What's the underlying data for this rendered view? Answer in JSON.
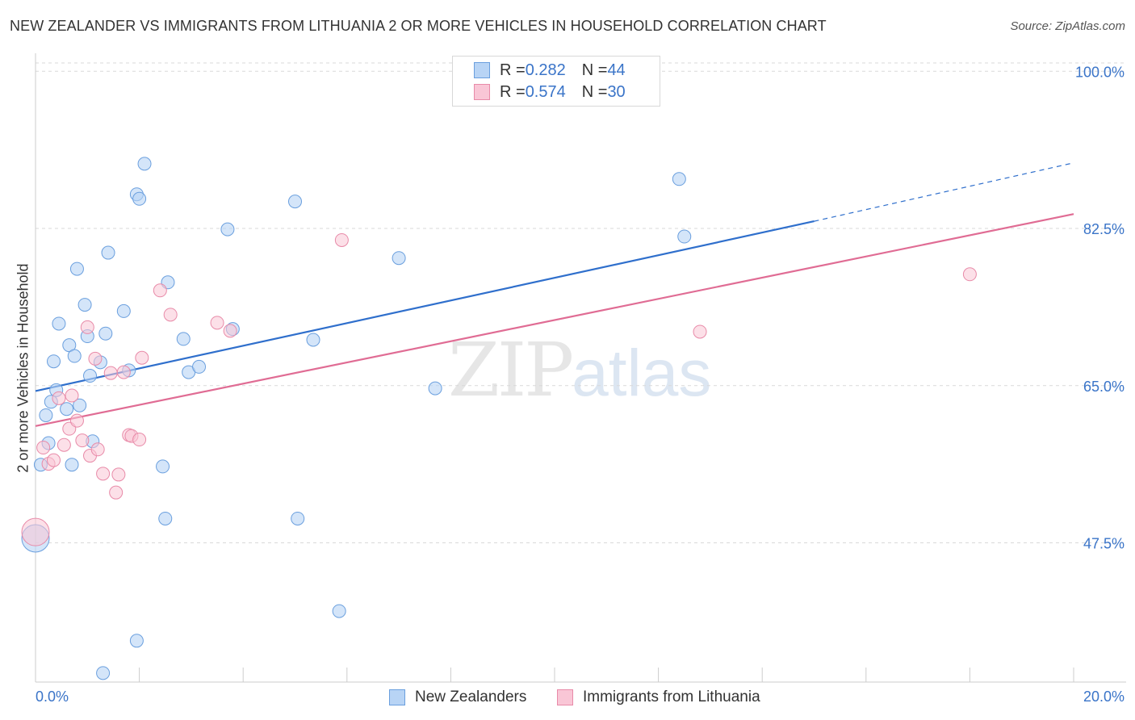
{
  "header": {
    "title": "NEW ZEALANDER VS IMMIGRANTS FROM LITHUANIA 2 OR MORE VEHICLES IN HOUSEHOLD CORRELATION CHART",
    "source": "Source: ZipAtlas.com"
  },
  "legend": {
    "nz": {
      "r_label": "R = ",
      "r_value": "0.282",
      "n_label": "N = ",
      "n_value": "44"
    },
    "lt": {
      "r_label": "R = ",
      "r_value": "0.574",
      "n_label": "N = ",
      "n_value": "30"
    }
  },
  "watermark": {
    "zip": "ZIP",
    "atlas": "atlas"
  },
  "colors": {
    "nz_fill": "#b8d4f5",
    "nz_stroke": "#6a9fde",
    "nz_line": "#2f6fcc",
    "lt_fill": "#f9c6d6",
    "lt_stroke": "#e88aa8",
    "lt_line": "#e06c94",
    "tick_label": "#3a74c8",
    "grid": "#d9d9d9"
  },
  "chart_data": {
    "type": "scatter",
    "title": "NEW ZEALANDER VS IMMIGRANTS FROM LITHUANIA 2 OR MORE VEHICLES IN HOUSEHOLD CORRELATION CHART",
    "xlabel": "",
    "ylabel": "2 or more Vehicles in Household",
    "xlim": [
      0,
      20
    ],
    "ylim": [
      32,
      102
    ],
    "x_unit": "%",
    "y_unit": "%",
    "x_tick_labels": [
      "0.0%",
      "20.0%"
    ],
    "y_ticks": [
      47.5,
      65.0,
      82.5,
      100.0
    ],
    "y_tick_labels": [
      "47.5%",
      "65.0%",
      "82.5%",
      "100.0%"
    ],
    "grid": true,
    "legend_position": "bottom",
    "series": [
      {
        "name": "New Zealanders",
        "r": 0.282,
        "n": 44,
        "trend": {
          "x0": 0.0,
          "y0": 64.4,
          "x1": 15.0,
          "y1": 83.3,
          "dashed_to_x": 20.0,
          "dashed_to_y": 89.8
        },
        "points": [
          [
            0.1,
            56.2
          ],
          [
            0.2,
            61.7
          ],
          [
            0.25,
            58.6
          ],
          [
            0.3,
            63.2
          ],
          [
            0.35,
            67.7
          ],
          [
            0.4,
            64.5
          ],
          [
            0.45,
            71.9
          ],
          [
            0.6,
            62.4
          ],
          [
            0.65,
            69.5
          ],
          [
            0.7,
            56.2
          ],
          [
            0.75,
            68.3
          ],
          [
            0.8,
            78.0
          ],
          [
            0.85,
            62.8
          ],
          [
            0.95,
            74.0
          ],
          [
            1.0,
            70.5
          ],
          [
            1.05,
            66.1
          ],
          [
            1.1,
            58.8
          ],
          [
            1.25,
            67.6
          ],
          [
            1.3,
            33.0
          ],
          [
            1.35,
            70.8
          ],
          [
            1.4,
            79.8
          ],
          [
            1.7,
            73.3
          ],
          [
            1.8,
            66.7
          ],
          [
            1.95,
            86.3
          ],
          [
            1.95,
            36.6
          ],
          [
            2.0,
            85.8
          ],
          [
            2.1,
            89.7
          ],
          [
            2.45,
            56.0
          ],
          [
            2.5,
            50.2
          ],
          [
            2.55,
            76.5
          ],
          [
            2.85,
            70.2
          ],
          [
            2.95,
            66.5
          ],
          [
            3.15,
            67.1
          ],
          [
            3.7,
            82.4
          ],
          [
            3.8,
            71.3
          ],
          [
            5.0,
            85.5
          ],
          [
            5.05,
            50.2
          ],
          [
            5.35,
            70.1
          ],
          [
            5.85,
            39.9
          ],
          [
            7.0,
            79.2
          ],
          [
            7.7,
            64.7
          ],
          [
            12.4,
            88.0
          ],
          [
            12.5,
            81.6
          ],
          [
            0.0,
            48.0
          ]
        ]
      },
      {
        "name": "Immigrants from Lithuania",
        "r": 0.574,
        "n": 30,
        "trend": {
          "x0": 0.0,
          "y0": 60.5,
          "x1": 20.0,
          "y1": 84.1
        },
        "points": [
          [
            0.15,
            58.1
          ],
          [
            0.25,
            56.3
          ],
          [
            0.35,
            56.7
          ],
          [
            0.45,
            63.6
          ],
          [
            0.55,
            58.4
          ],
          [
            0.65,
            60.2
          ],
          [
            0.7,
            63.9
          ],
          [
            0.8,
            61.1
          ],
          [
            0.9,
            58.9
          ],
          [
            1.0,
            71.5
          ],
          [
            1.05,
            57.2
          ],
          [
            1.15,
            68.0
          ],
          [
            1.2,
            57.9
          ],
          [
            1.3,
            55.2
          ],
          [
            1.45,
            66.4
          ],
          [
            1.55,
            53.1
          ],
          [
            1.6,
            55.1
          ],
          [
            1.7,
            66.5
          ],
          [
            1.8,
            59.5
          ],
          [
            1.85,
            59.4
          ],
          [
            2.0,
            59.0
          ],
          [
            2.05,
            68.1
          ],
          [
            2.4,
            75.6
          ],
          [
            2.6,
            72.9
          ],
          [
            3.5,
            72.0
          ],
          [
            3.75,
            71.1
          ],
          [
            5.9,
            81.2
          ],
          [
            12.8,
            71.0
          ],
          [
            18.0,
            77.4
          ],
          [
            0.0,
            48.7
          ]
        ]
      }
    ]
  },
  "axis": {
    "x_left": "0.0%",
    "x_right": "20.0%",
    "ylabel": "2 or more Vehicles in Household"
  },
  "bottom_legend": {
    "nz_label": "New Zealanders",
    "lt_label": "Immigrants from Lithuania"
  }
}
